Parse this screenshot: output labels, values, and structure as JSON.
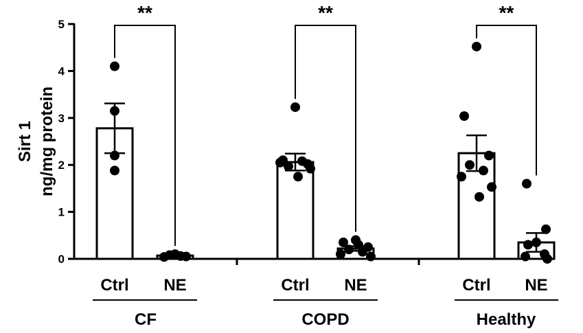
{
  "chart_data": {
    "type": "bar",
    "ylabel": [
      "Sirt 1",
      "ng/mg protein"
    ],
    "ylim": [
      0,
      5
    ],
    "yticks": [
      0,
      1,
      2,
      3,
      4,
      5
    ],
    "grid": false,
    "groups": [
      {
        "name": "CF",
        "significance": "**",
        "bars": [
          {
            "label": "Ctrl",
            "mean": 2.78,
            "sem": 0.53,
            "points": [
              4.1,
              3.15,
              2.2,
              1.88
            ]
          },
          {
            "label": "NE",
            "mean": 0.07,
            "sem": 0.02,
            "points": [
              0.04,
              0.08,
              0.1,
              0.06,
              0.05
            ]
          }
        ]
      },
      {
        "name": "COPD",
        "significance": "**",
        "bars": [
          {
            "label": "Ctrl",
            "mean": 2.06,
            "sem": 0.18,
            "points": [
              3.23,
              2.1,
              2.02,
              1.97,
              2.08,
              2.05,
              1.92,
              1.75
            ]
          },
          {
            "label": "NE",
            "mean": 0.22,
            "sem": 0.05,
            "points": [
              0.4,
              0.35,
              0.25,
              0.2,
              0.15,
              0.1,
              0.05,
              0.3
            ]
          }
        ]
      },
      {
        "name": "Healthy",
        "significance": "**",
        "bars": [
          {
            "label": "Ctrl",
            "mean": 2.25,
            "sem": 0.38,
            "points": [
              4.52,
              3.04,
              2.2,
              2.0,
              1.88,
              1.75,
              1.53,
              1.32
            ]
          },
          {
            "label": "NE",
            "mean": 0.35,
            "sem": 0.2,
            "points": [
              1.6,
              0.63,
              0.35,
              0.3,
              0.1,
              0.05,
              0.0
            ]
          }
        ]
      }
    ]
  }
}
